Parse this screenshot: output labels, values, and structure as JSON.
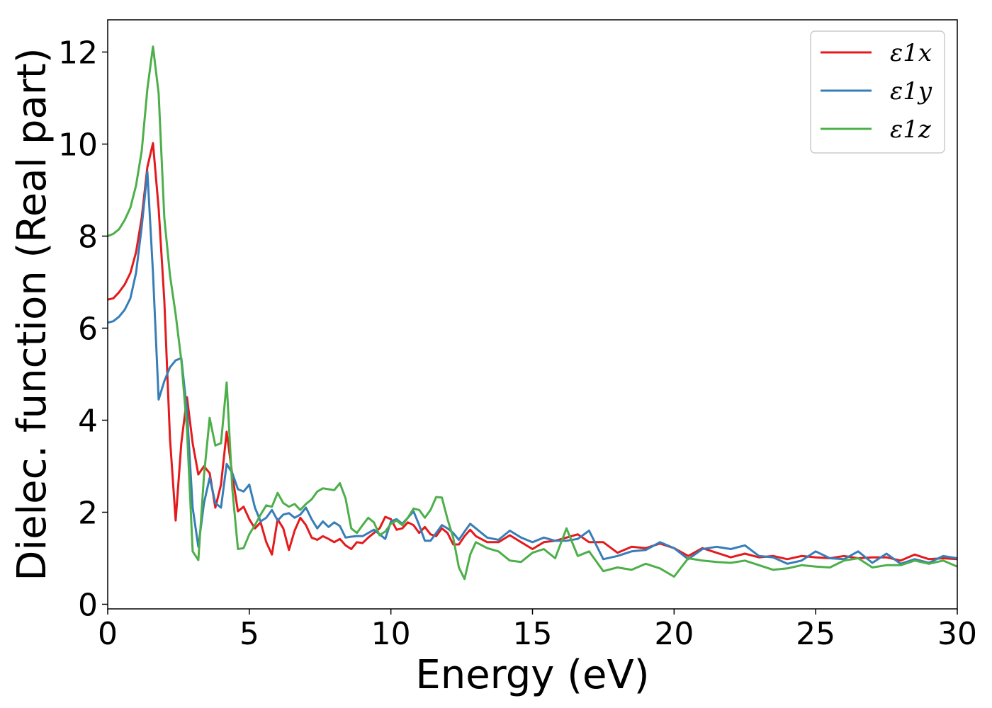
{
  "chart_data": {
    "type": "line",
    "xlabel": "Energy (eV)",
    "ylabel": "Dielec. function (Real part)",
    "xlim": [
      0,
      30
    ],
    "ylim": [
      -0.1,
      12.7
    ],
    "xticks": [
      0,
      5,
      10,
      15,
      20,
      25,
      30
    ],
    "yticks": [
      0,
      2,
      4,
      6,
      8,
      10,
      12
    ],
    "grid": false,
    "legend_position": "top-right",
    "series": [
      {
        "name": "ε1x",
        "color": "#e41a1c",
        "x": [
          0,
          0.2,
          0.4,
          0.6,
          0.8,
          1.0,
          1.2,
          1.4,
          1.6,
          1.8,
          2.0,
          2.2,
          2.4,
          2.6,
          2.8,
          3.0,
          3.2,
          3.4,
          3.6,
          3.8,
          4.0,
          4.2,
          4.4,
          4.6,
          4.8,
          5.0,
          5.2,
          5.4,
          5.6,
          5.8,
          6.0,
          6.2,
          6.4,
          6.6,
          6.8,
          7.0,
          7.2,
          7.4,
          7.6,
          7.8,
          8.0,
          8.2,
          8.4,
          8.6,
          8.8,
          9.0,
          9.2,
          9.4,
          9.6,
          9.8,
          10.0,
          10.2,
          10.4,
          10.6,
          10.8,
          11.0,
          11.2,
          11.4,
          11.6,
          11.8,
          12.0,
          12.2,
          12.4,
          12.6,
          12.8,
          13.0,
          13.4,
          13.8,
          14.2,
          14.6,
          15.0,
          15.4,
          15.8,
          16.2,
          16.6,
          17.0,
          17.5,
          18.0,
          18.5,
          19.0,
          19.5,
          20.0,
          20.5,
          21.0,
          21.5,
          22.0,
          22.5,
          23.0,
          23.5,
          24.0,
          24.5,
          25.0,
          25.5,
          26.0,
          26.5,
          27.0,
          27.5,
          28.0,
          28.5,
          29.0,
          29.5,
          30.0
        ],
        "y": [
          6.62,
          6.65,
          6.78,
          6.95,
          7.2,
          7.65,
          8.4,
          9.5,
          10.02,
          8.6,
          6.6,
          3.6,
          1.82,
          3.5,
          4.5,
          3.5,
          2.82,
          3.0,
          2.85,
          2.1,
          2.6,
          3.75,
          2.8,
          2.02,
          2.12,
          1.85,
          1.65,
          1.78,
          1.35,
          1.08,
          1.85,
          1.65,
          1.18,
          1.6,
          1.88,
          1.72,
          1.45,
          1.4,
          1.48,
          1.42,
          1.35,
          1.42,
          1.28,
          1.2,
          1.35,
          1.33,
          1.45,
          1.55,
          1.65,
          1.9,
          1.85,
          1.62,
          1.65,
          1.78,
          1.72,
          1.55,
          1.68,
          1.52,
          1.48,
          1.65,
          1.55,
          1.3,
          1.3,
          1.48,
          1.62,
          1.48,
          1.35,
          1.35,
          1.5,
          1.35,
          1.2,
          1.35,
          1.38,
          1.45,
          1.52,
          1.35,
          1.35,
          1.12,
          1.25,
          1.22,
          1.32,
          1.22,
          1.05,
          1.22,
          1.12,
          1.02,
          1.1,
          1.02,
          1.05,
          0.98,
          1.05,
          1.02,
          1.0,
          1.05,
          1.0,
          1.02,
          1.02,
          0.95,
          1.08,
          0.98,
          1.0,
          0.98
        ]
      },
      {
        "name": "ε1y",
        "color": "#377eb8",
        "x": [
          0,
          0.2,
          0.4,
          0.6,
          0.8,
          1.0,
          1.2,
          1.4,
          1.6,
          1.8,
          2.0,
          2.2,
          2.4,
          2.6,
          2.8,
          3.0,
          3.2,
          3.4,
          3.6,
          3.8,
          4.0,
          4.2,
          4.4,
          4.6,
          4.8,
          5.0,
          5.2,
          5.4,
          5.6,
          5.8,
          6.0,
          6.2,
          6.4,
          6.6,
          6.8,
          7.0,
          7.2,
          7.4,
          7.6,
          7.8,
          8.0,
          8.2,
          8.4,
          8.6,
          8.8,
          9.0,
          9.2,
          9.4,
          9.6,
          9.8,
          10.0,
          10.2,
          10.4,
          10.6,
          10.8,
          11.0,
          11.2,
          11.4,
          11.6,
          11.8,
          12.0,
          12.2,
          12.4,
          12.6,
          12.8,
          13.0,
          13.4,
          13.8,
          14.2,
          14.6,
          15.0,
          15.4,
          15.8,
          16.2,
          16.6,
          17.0,
          17.5,
          18.0,
          18.5,
          19.0,
          19.5,
          20.0,
          20.5,
          21.0,
          21.5,
          22.0,
          22.5,
          23.0,
          23.5,
          24.0,
          24.5,
          25.0,
          25.5,
          26.0,
          26.5,
          27.0,
          27.5,
          28.0,
          28.5,
          29.0,
          29.5,
          30.0
        ],
        "y": [
          6.12,
          6.15,
          6.25,
          6.4,
          6.65,
          7.2,
          8.2,
          9.4,
          7.2,
          4.45,
          4.85,
          5.15,
          5.3,
          5.35,
          4.2,
          2.1,
          1.25,
          2.2,
          2.75,
          2.2,
          2.1,
          3.05,
          2.85,
          2.5,
          2.45,
          2.6,
          2.1,
          1.8,
          1.88,
          2.05,
          1.82,
          1.95,
          1.98,
          1.88,
          1.95,
          2.1,
          1.85,
          1.65,
          1.8,
          1.68,
          1.78,
          1.7,
          1.45,
          1.47,
          1.48,
          1.48,
          1.55,
          1.62,
          1.52,
          1.42,
          1.8,
          1.85,
          1.75,
          1.88,
          2.02,
          1.72,
          1.38,
          1.38,
          1.55,
          1.72,
          1.65,
          1.55,
          1.4,
          1.58,
          1.75,
          1.65,
          1.45,
          1.4,
          1.6,
          1.45,
          1.35,
          1.45,
          1.38,
          1.38,
          1.42,
          1.6,
          0.98,
          1.05,
          1.15,
          1.18,
          1.35,
          1.22,
          0.98,
          1.2,
          1.25,
          1.2,
          1.28,
          1.05,
          1.02,
          0.88,
          0.95,
          1.15,
          1.0,
          0.98,
          1.15,
          0.9,
          1.1,
          0.88,
          0.98,
          0.9,
          1.05,
          1.0
        ]
      },
      {
        "name": "ε1z",
        "color": "#4daf4a",
        "x": [
          0,
          0.2,
          0.4,
          0.6,
          0.8,
          1.0,
          1.2,
          1.4,
          1.6,
          1.8,
          2.0,
          2.2,
          2.4,
          2.6,
          2.8,
          3.0,
          3.2,
          3.4,
          3.6,
          3.8,
          4.0,
          4.2,
          4.4,
          4.6,
          4.8,
          5.0,
          5.2,
          5.4,
          5.6,
          5.8,
          6.0,
          6.2,
          6.4,
          6.6,
          6.8,
          7.0,
          7.2,
          7.4,
          7.6,
          7.8,
          8.0,
          8.2,
          8.4,
          8.6,
          8.8,
          9.0,
          9.2,
          9.4,
          9.6,
          9.8,
          10.0,
          10.2,
          10.4,
          10.6,
          10.8,
          11.0,
          11.2,
          11.4,
          11.6,
          11.8,
          12.0,
          12.2,
          12.4,
          12.6,
          12.8,
          13.0,
          13.4,
          13.8,
          14.2,
          14.6,
          15.0,
          15.4,
          15.8,
          16.2,
          16.6,
          17.0,
          17.5,
          18.0,
          18.5,
          19.0,
          19.5,
          20.0,
          20.5,
          21.0,
          21.5,
          22.0,
          22.5,
          23.0,
          23.5,
          24.0,
          24.5,
          25.0,
          25.5,
          26.0,
          26.5,
          27.0,
          27.5,
          28.0,
          28.5,
          29.0,
          29.5,
          30.0
        ],
        "y": [
          8.0,
          8.05,
          8.15,
          8.35,
          8.62,
          9.1,
          9.85,
          11.2,
          12.12,
          11.1,
          8.4,
          7.15,
          6.3,
          5.3,
          3.8,
          1.15,
          0.96,
          2.8,
          4.05,
          3.45,
          3.5,
          4.82,
          2.5,
          1.2,
          1.22,
          1.52,
          1.72,
          1.95,
          2.15,
          2.12,
          2.42,
          2.2,
          2.12,
          2.18,
          2.05,
          2.18,
          2.28,
          2.45,
          2.52,
          2.5,
          2.48,
          2.63,
          2.3,
          1.65,
          1.55,
          1.72,
          1.88,
          1.78,
          1.5,
          1.58,
          1.75,
          1.82,
          1.72,
          1.88,
          2.08,
          2.05,
          1.88,
          2.05,
          2.33,
          2.32,
          1.85,
          1.45,
          0.8,
          0.55,
          1.08,
          1.35,
          1.22,
          1.15,
          0.95,
          0.92,
          1.12,
          1.2,
          1.0,
          1.65,
          1.05,
          1.15,
          0.72,
          0.8,
          0.75,
          0.88,
          0.78,
          0.6,
          1.0,
          0.95,
          0.92,
          0.9,
          0.95,
          0.85,
          0.75,
          0.78,
          0.85,
          0.82,
          0.8,
          0.95,
          1.0,
          0.8,
          0.85,
          0.85,
          0.95,
          0.88,
          0.95,
          0.82
        ]
      }
    ]
  }
}
